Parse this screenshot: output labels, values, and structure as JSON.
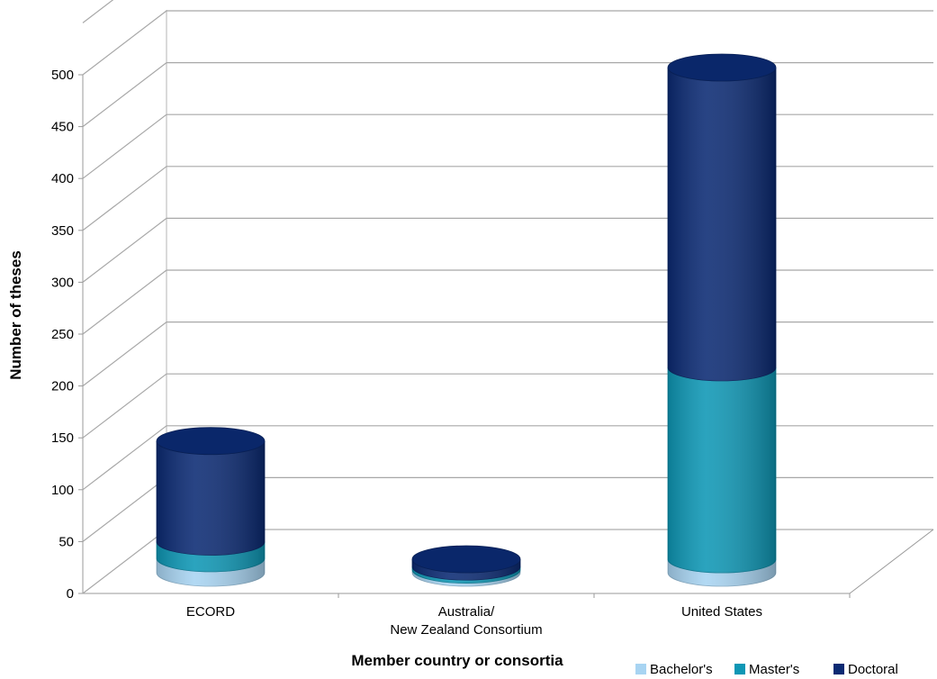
{
  "chart_data": {
    "type": "bar",
    "style": "3d-cylinder-stacked",
    "categories": [
      "ECORD",
      "Australia/\nNew Zealand Consortium",
      "United States"
    ],
    "series": [
      {
        "name": "Bachelor's",
        "color": "#a8d4f2",
        "values": [
          14,
          3,
          13
        ]
      },
      {
        "name": "Master's",
        "color": "#0e97b5",
        "values": [
          16,
          3,
          185
        ]
      },
      {
        "name": "Doctoral",
        "color": "#0b2a73",
        "values": [
          97,
          7,
          289
        ]
      }
    ],
    "xlabel": "Member country or consortia",
    "ylabel": "Number of theses",
    "ylim": [
      0,
      500
    ],
    "yticks": [
      0,
      50,
      100,
      150,
      200,
      250,
      300,
      350,
      400,
      450,
      500
    ],
    "grid": true,
    "legend": "bottom-right"
  }
}
